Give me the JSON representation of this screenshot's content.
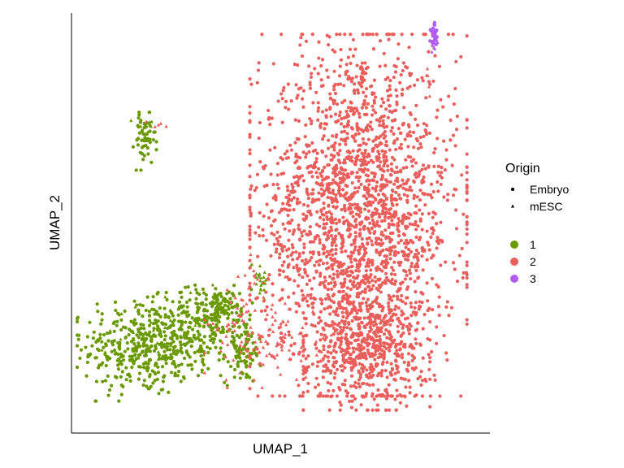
{
  "chart_data": {
    "type": "scatter",
    "xlabel": "UMAP_1",
    "ylabel": "UMAP_2",
    "grid": false,
    "axis_ticks": false,
    "legend_position": "right",
    "legend": {
      "shape_title": "Origin",
      "shapes": [
        {
          "label": "Embryo",
          "marker": "circle"
        },
        {
          "label": "mESC",
          "marker": "triangle"
        }
      ],
      "colors": [
        {
          "label": "1",
          "color": "#6a9a00"
        },
        {
          "label": "2",
          "color": "#ea5f5b"
        },
        {
          "label": "3",
          "color": "#b15cf0"
        }
      ]
    },
    "xlim": [
      0,
      100
    ],
    "ylim": [
      0,
      100
    ],
    "clusters": [
      {
        "cluster": "1",
        "shape": "circle",
        "center": [
          16,
          20
        ],
        "spread": [
          7,
          6
        ],
        "count": 360
      },
      {
        "cluster": "1",
        "shape": "circle",
        "center": [
          30,
          24
        ],
        "spread": [
          6,
          5
        ],
        "count": 240
      },
      {
        "cluster": "1",
        "shape": "circle",
        "center": [
          35,
          29
        ],
        "spread": [
          2.5,
          2.5
        ],
        "count": 90
      },
      {
        "cluster": "1",
        "shape": "circle",
        "center": [
          41,
          19
        ],
        "spread": [
          2.2,
          4
        ],
        "count": 80
      },
      {
        "cluster": "1",
        "shape": "circle",
        "center": [
          17,
          70
        ],
        "spread": [
          1.3,
          3.2
        ],
        "count": 55
      },
      {
        "cluster": "1",
        "shape": "triangle",
        "center": [
          17,
          74
        ],
        "spread": [
          1.5,
          1
        ],
        "count": 12
      },
      {
        "cluster": "1",
        "shape": "triangle",
        "center": [
          45,
          37
        ],
        "spread": [
          1.2,
          2.5
        ],
        "count": 25
      },
      {
        "cluster": "1",
        "shape": "triangle",
        "center": [
          22,
          24
        ],
        "spread": [
          7,
          5
        ],
        "count": 40
      },
      {
        "cluster": "2",
        "shape": "circle",
        "center": [
          69,
          52
        ],
        "spread": [
          12,
          20
        ],
        "count": 2200
      },
      {
        "cluster": "2",
        "shape": "circle",
        "center": [
          71,
          20
        ],
        "spread": [
          7,
          7
        ],
        "count": 500
      },
      {
        "cluster": "2",
        "shape": "triangle",
        "center": [
          47,
          21
        ],
        "spread": [
          7,
          5
        ],
        "count": 110
      },
      {
        "cluster": "2",
        "shape": "triangle",
        "center": [
          44,
          32
        ],
        "spread": [
          4,
          5
        ],
        "count": 30
      },
      {
        "cluster": "2",
        "shape": "circle",
        "center": [
          70,
          86
        ],
        "spread": [
          0.5,
          1.2
        ],
        "count": 14
      },
      {
        "cluster": "2",
        "shape": "triangle",
        "center": [
          86,
          84
        ],
        "spread": [
          0.4,
          2
        ],
        "count": 5
      },
      {
        "cluster": "2",
        "shape": "triangle",
        "center": [
          20,
          74
        ],
        "spread": [
          1.5,
          0.6
        ],
        "count": 5
      },
      {
        "cluster": "3",
        "shape": "circle",
        "center": [
          87.5,
          96
        ],
        "spread": [
          0.5,
          1.3
        ],
        "count": 28
      },
      {
        "cluster": "3",
        "shape": "triangle",
        "center": [
          87.5,
          94
        ],
        "spread": [
          0.5,
          1.2
        ],
        "count": 8
      }
    ]
  }
}
